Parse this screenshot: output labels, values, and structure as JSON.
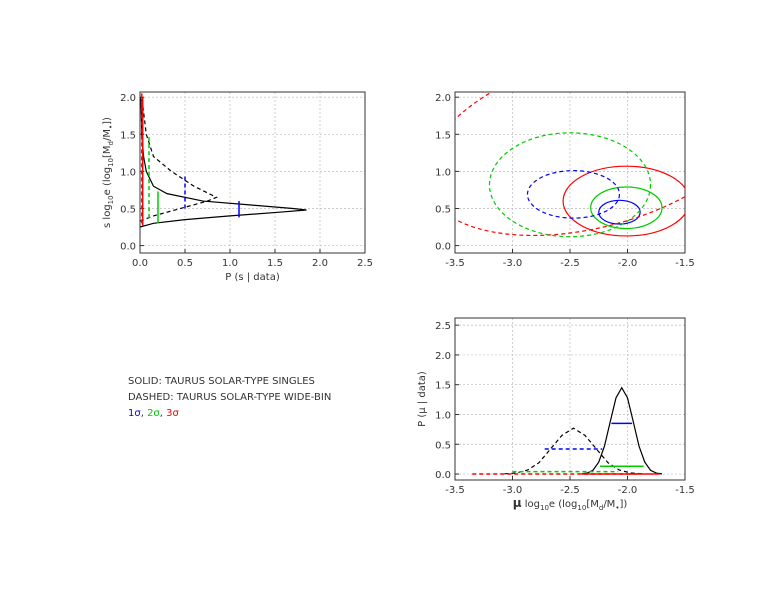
{
  "chart_data": [
    {
      "type": "line",
      "x_label": "P (s | data)",
      "y_label_parts": [
        "s log",
        "10",
        "e (log",
        "10",
        "[M",
        "d",
        "/M",
        "•",
        "])"
      ],
      "xlim": [
        0,
        2.5
      ],
      "ylim": [
        -0.1,
        2.07
      ],
      "xticks": [
        {
          "value": 0,
          "label": "0.0"
        },
        0.5,
        {
          "value": 1,
          "label": "1.0"
        },
        1.5,
        {
          "value": 2,
          "label": "2.0"
        },
        2.5
      ],
      "yticks": [
        {
          "value": 0,
          "label": "0.0"
        },
        0.5,
        {
          "value": 1,
          "label": "1.0"
        },
        1.5,
        {
          "value": 2,
          "label": "2.0"
        }
      ],
      "grid": true,
      "series": [
        {
          "color": "#000000",
          "dash": false,
          "x": [
            0,
            0.15,
            0.5,
            1.0,
            1.55,
            1.85,
            1.7,
            1.2,
            0.7,
            0.3,
            0.15,
            0.07,
            0.04,
            0.02,
            0.01
          ],
          "y": [
            0.25,
            0.3,
            0.35,
            0.4,
            0.45,
            0.48,
            0.5,
            0.55,
            0.6,
            0.7,
            0.8,
            1.0,
            1.2,
            1.5,
            2.0
          ]
        },
        {
          "color": "#000000",
          "dash": true,
          "x": [
            0,
            0.15,
            0.45,
            0.75,
            0.85,
            0.6,
            0.35,
            0.15,
            0.07,
            0.02
          ],
          "y": [
            0.33,
            0.4,
            0.5,
            0.6,
            0.65,
            0.8,
            1.0,
            1.2,
            1.5,
            2.0
          ]
        }
      ],
      "intervals": [
        {
          "color": "#0000ff",
          "dash": false,
          "x": 1.1,
          "y": [
            0.38,
            0.6
          ]
        },
        {
          "color": "#00cc00",
          "dash": false,
          "x": 0.2,
          "y": [
            0.3,
            0.73
          ]
        },
        {
          "color": "#ff0000",
          "dash": false,
          "x": 0.03,
          "y": [
            0.27,
            2.0
          ]
        },
        {
          "color": "#0000ff",
          "dash": true,
          "x": 0.5,
          "y": [
            0.5,
            0.97
          ]
        },
        {
          "color": "#00cc00",
          "dash": true,
          "x": 0.1,
          "y": [
            0.37,
            1.5
          ]
        },
        {
          "color": "#ff0000",
          "dash": true,
          "x": 0.02,
          "y": [
            0.3,
            2.05
          ]
        }
      ]
    },
    {
      "type": "contour",
      "xlim": [
        -3.5,
        -1.5
      ],
      "ylim": [
        -0.1,
        2.07
      ],
      "xticks": [
        -3.5,
        {
          "value": -3,
          "label": "-3.0"
        },
        -2.5,
        {
          "value": -2,
          "label": "-2.0"
        },
        -1.5
      ],
      "yticks": [
        {
          "value": 0,
          "label": "0.0"
        },
        0.5,
        {
          "value": 1,
          "label": "1.0"
        },
        1.5,
        {
          "value": 2,
          "label": "2.0"
        }
      ],
      "grid": true,
      "ellipses": [
        {
          "color": "#0000ff",
          "dash": false,
          "cx": -2.07,
          "cy": 0.45,
          "rx": 0.18,
          "ry": 0.16,
          "angle": 0
        },
        {
          "color": "#00cc00",
          "dash": false,
          "cx": -2.01,
          "cy": 0.51,
          "rx": 0.31,
          "ry": 0.28,
          "angle": 0
        },
        {
          "color": "#ff0000",
          "dash": false,
          "cx": -2.01,
          "cy": 0.6,
          "rx": 0.55,
          "ry": 0.47,
          "angle": 0
        },
        {
          "color": "#0000ff",
          "dash": true,
          "cx": -2.47,
          "cy": 0.69,
          "rx": 0.4,
          "ry": 0.32,
          "angle": 0
        },
        {
          "color": "#00cc00",
          "dash": true,
          "cx": -2.5,
          "cy": 0.82,
          "rx": 0.7,
          "ry": 0.7,
          "angle": 0
        },
        {
          "color": "#ff0000",
          "dash": true,
          "cx": -2.3,
          "cy": 1.4,
          "rx": 1.5,
          "ry": 1.15,
          "angle": -15
        }
      ]
    },
    {
      "type": "line",
      "x_label_symbol": "μ",
      "x_label_parts": [
        " log",
        "10",
        "e (log",
        "10",
        "[M",
        "d",
        "/M",
        "•",
        "])"
      ],
      "y_label": "P (μ | data)",
      "xlim": [
        -3.5,
        -1.5
      ],
      "ylim": [
        -0.1,
        2.62
      ],
      "xticks": [
        -3.5,
        {
          "value": -3,
          "label": "-3.0"
        },
        -2.5,
        {
          "value": -2,
          "label": "-2.0"
        },
        -1.5
      ],
      "yticks": [
        {
          "value": 0,
          "label": "0.0"
        },
        0.5,
        {
          "value": 1,
          "label": "1.0"
        },
        1.5,
        {
          "value": 2,
          "label": "2.0"
        },
        2.5
      ],
      "grid": true,
      "series": [
        {
          "color": "#000000",
          "dash": false,
          "x": [
            -2.4,
            -2.35,
            -2.3,
            -2.25,
            -2.2,
            -2.15,
            -2.1,
            -2.05,
            -2.0,
            -1.95,
            -1.9,
            -1.85,
            -1.8,
            -1.75,
            -1.7
          ],
          "y": [
            0.003,
            0.016,
            0.064,
            0.2,
            0.47,
            0.88,
            1.28,
            1.45,
            1.28,
            0.88,
            0.47,
            0.2,
            0.064,
            0.016,
            0.003
          ]
        },
        {
          "color": "#000000",
          "dash": true,
          "x": [
            -3.07,
            -2.97,
            -2.87,
            -2.77,
            -2.67,
            -2.57,
            -2.47,
            -2.37,
            -2.27,
            -2.17,
            -2.07,
            -1.97,
            -1.87
          ],
          "y": [
            0.004,
            0.017,
            0.066,
            0.19,
            0.42,
            0.65,
            0.77,
            0.65,
            0.42,
            0.19,
            0.066,
            0.017,
            0.004
          ]
        }
      ],
      "intervals": [
        {
          "color": "#0000ff",
          "dash": false,
          "y": 0.85,
          "x": [
            -2.14,
            -1.96
          ]
        },
        {
          "color": "#00cc00",
          "dash": false,
          "y": 0.13,
          "x": [
            -2.24,
            -1.86
          ]
        },
        {
          "color": "#ff0000",
          "dash": false,
          "y": 0,
          "x": [
            -2.4,
            -1.72
          ]
        },
        {
          "color": "#0000ff",
          "dash": true,
          "y": 0.42,
          "x": [
            -2.72,
            -2.22
          ]
        },
        {
          "color": "#00cc00",
          "dash": true,
          "y": 0.04,
          "x": [
            -3.0,
            -2.08
          ]
        },
        {
          "color": "#ff0000",
          "dash": true,
          "y": 0,
          "x": [
            -3.35,
            -1.9
          ]
        }
      ]
    }
  ],
  "legend_text": {
    "lines": [
      "SOLID:  TAURUS SOLAR-TYPE SINGLES",
      "DASHED: TAURUS SOLAR-TYPE WIDE-BIN"
    ],
    "sigmas": [
      {
        "text": "1σ",
        "color": "#0000ff"
      },
      {
        "text": "2σ",
        "color": "#00cc00"
      },
      {
        "text": "3σ",
        "color": "#ff0000"
      }
    ],
    "separator": ", "
  }
}
